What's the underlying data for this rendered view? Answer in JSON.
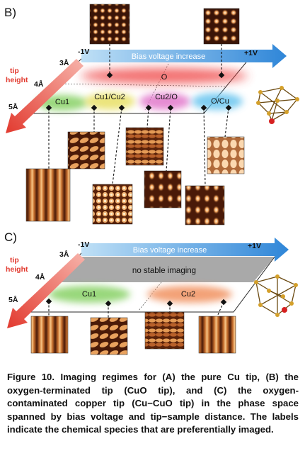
{
  "panel_b": {
    "label": "B)",
    "bias_arrow_label": "Bias voltage increase",
    "tip_height_label": "tip height",
    "voltage_left": "-1V",
    "voltage_right": "+1V",
    "heights": [
      "3Å",
      "4Å",
      "5Å"
    ],
    "regions": [
      "O",
      "Cu1",
      "Cu1/Cu2",
      "Cu2/O",
      "O/Cu"
    ],
    "colors": {
      "o": "#ee3a3a",
      "cu1": "#7fce5a",
      "cu1cu2": "#e8e066",
      "cu2o": "#e06fc8",
      "ocu": "#5fc1ee"
    }
  },
  "panel_c": {
    "label": "C)",
    "bias_arrow_label": "Bias voltage increase",
    "tip_height_label": "tip height",
    "voltage_left": "-1V",
    "voltage_right": "+1V",
    "heights": [
      "3Å",
      "4Å",
      "5Å"
    ],
    "no_stable_label": "no stable imaging",
    "regions": [
      "Cu1",
      "Cu2"
    ],
    "colors": {
      "cu1": "#7fce5a",
      "cu2": "#f08a55",
      "grey": "#a9a9a9"
    }
  },
  "caption": {
    "text": "Figure 10. Imaging regimes for (A) the pure Cu tip, (B) the oxygen-terminated tip (CuO tip), and (C) the oxygen-contaminated copper tip (Cu−CuO tip) in the phase space spanned by bias voltage and tip−sample distance. The labels indicate the chemical species that are preferentially imaged."
  },
  "theme": {
    "blue_arrow": "#3b8ddc",
    "red_arrow": "#e8433a",
    "plane_outline": "#2a2a2a"
  }
}
